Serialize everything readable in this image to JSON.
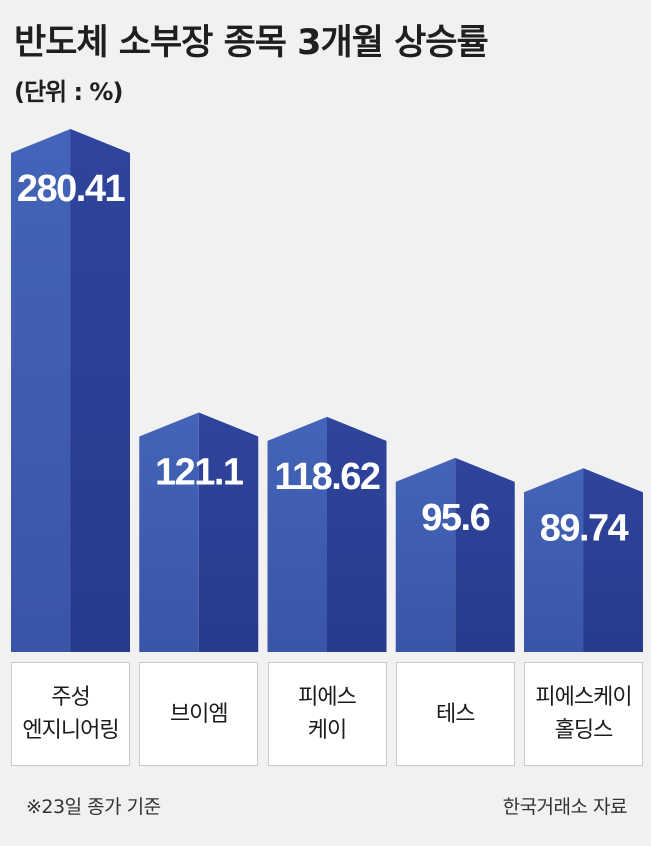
{
  "header": {
    "title": "반도체 소부장 종목 3개월 상승률",
    "unit": "(단위 : %)"
  },
  "footer": {
    "note": "※23일 종가 기준",
    "source": "한국거래소 자료"
  },
  "colors": {
    "bar_left": "#3f5fb4",
    "bar_right": "#2c3f96",
    "background": "#f1f1f1"
  },
  "chart_data": {
    "type": "bar",
    "title": "반도체 소부장 종목 3개월 상승률",
    "ylabel": "(단위 : %)",
    "xlabel": "",
    "categories": [
      "주성\n엔지니어링",
      "브이엠",
      "피에스\n케이",
      "테스",
      "피에스케이\n홀딩스"
    ],
    "values": [
      280.41,
      121.1,
      118.62,
      95.6,
      89.74
    ],
    "value_labels": [
      "280.41",
      "121.1",
      "118.62",
      "95.6",
      "89.74"
    ],
    "ylim": [
      0,
      280.41
    ],
    "grid": false,
    "legend": "none"
  }
}
